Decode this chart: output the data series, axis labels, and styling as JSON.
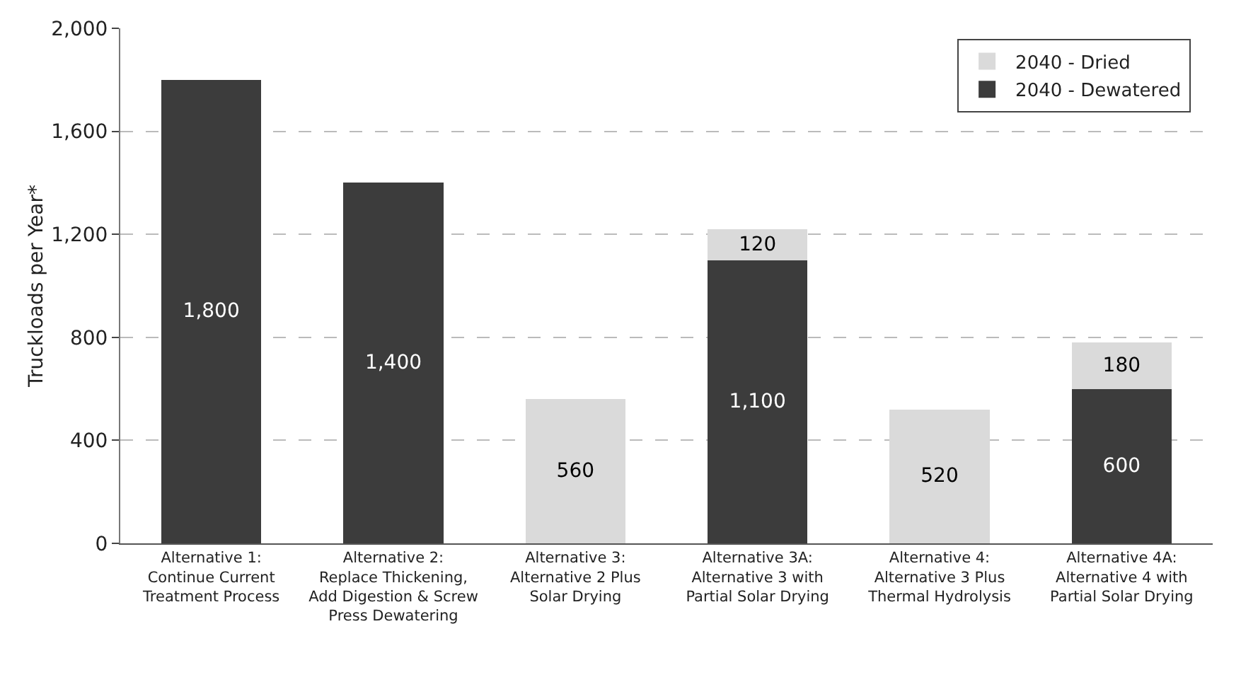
{
  "chart_data": {
    "type": "bar",
    "stacked": true,
    "ylabel": "Truckloads per Year*",
    "categories": [
      "Alternative 1: Continue Current Treatment Process",
      "Alternative 2: Replace Thickening, Add Digestion & Screw Press Dewatering",
      "Alternative 3: Alternative 2 Plus Solar Drying",
      "Alternative 3A: Alternative 3 with Partial Solar Drying",
      "Alternative 4: Alternative 3 Plus Thermal Hydrolysis",
      "Alternative 4A: Alternative 4 with Partial Solar Drying"
    ],
    "series": [
      {
        "name": "2040 - Dewatered",
        "color": "#3c3c3c",
        "values": [
          1800,
          1400,
          null,
          1100,
          null,
          600
        ],
        "value_labels": [
          "1,800",
          "1,400",
          null,
          "1,100",
          null,
          "600"
        ]
      },
      {
        "name": "2040 - Dried",
        "color": "#dadada",
        "values": [
          null,
          null,
          560,
          120,
          520,
          180
        ],
        "value_labels": [
          null,
          null,
          "560",
          "120",
          "520",
          "180"
        ]
      }
    ],
    "ylim": [
      0,
      2000
    ],
    "yticks": [
      0,
      400,
      800,
      {
        "value": 1200,
        "label": "1,200"
      },
      {
        "value": 1600,
        "label": "1,600"
      },
      {
        "value": 2000,
        "label": "2,000"
      }
    ],
    "grid": "y",
    "legend": "top right"
  }
}
